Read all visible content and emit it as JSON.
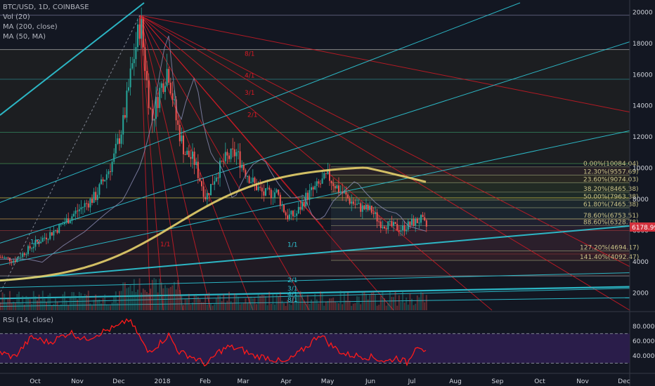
{
  "legend": {
    "symbol": "BTC/USD, 1D, COINBASE",
    "vol": "Vol (20)",
    "ma200": "MA (200, close)",
    "ma50": "MA (50, MA)"
  },
  "rsi": {
    "label": "RSI (14, close)"
  },
  "last_price": "6178.99",
  "colors": {
    "background": "#131722",
    "ma200": "#e6d06b",
    "ma50": "#8d8db5",
    "fan": "#d91a25",
    "trend": "#2ec7d6",
    "price_tag": "#d3313d",
    "rsi_line": "#ff1a1a",
    "rsi_band": "#2a1d4a"
  },
  "fib_levels": [
    {
      "text": "0.00%(10084.04)",
      "price": 10084
    },
    {
      "text": "12.30%(9557.69)",
      "price": 9558
    },
    {
      "text": "23.60%(9074.03)",
      "price": 9074
    },
    {
      "text": "38.20%(8465.38)",
      "price": 8465
    },
    {
      "text": "50.00%(7963.38)",
      "price": 7963
    },
    {
      "text": "61.80%(7465.38)",
      "price": 7465
    },
    {
      "text": "78.60%(6753.51)",
      "price": 6754
    },
    {
      "text": "88.60%(6328.78)",
      "price": 6329
    },
    {
      "text": "127.20%(4694.17)",
      "price": 4694
    },
    {
      "text": "141.40%(4092.47)",
      "price": 4092
    }
  ],
  "fan_labels": [
    "8/1",
    "4/1",
    "3/1",
    "2/1",
    "1/1"
  ],
  "speed_labels": [
    "1/2",
    "1/1",
    "2/1",
    "3/1",
    "4/1",
    "8/1"
  ],
  "chart_data": {
    "type": "candlestick",
    "x_ticks": [
      "Oct",
      "Nov",
      "Dec",
      "2018",
      "Feb",
      "Mar",
      "Apr",
      "May",
      "Jun",
      "Jul",
      "Aug",
      "Sep",
      "Oct",
      "Nov",
      "Dec"
    ],
    "y_ticks": [
      20000,
      18000,
      16000,
      14000,
      12000,
      10000,
      8000,
      6000,
      4000,
      2000
    ],
    "ylim": [
      900,
      20600
    ],
    "rsi_ticks": [
      "80.0000",
      "60.0000",
      "40.0000"
    ],
    "rsi_ylim": [
      20,
      95
    ],
    "rsi_bands": [
      30,
      70
    ],
    "closes_monthly": [
      {
        "month": "Oct",
        "close": 5500
      },
      {
        "month": "Nov",
        "close": 8200
      },
      {
        "month": "Dec",
        "close": 13800
      },
      {
        "month": "2018",
        "close": 14500
      },
      {
        "month": "Feb",
        "close": 10300
      },
      {
        "month": "Mar",
        "close": 6900
      },
      {
        "month": "Apr",
        "close": 9250
      },
      {
        "month": "May",
        "close": 7500
      },
      {
        "month": "Jun",
        "close": 6400
      },
      {
        "month": "Jul",
        "close": 6179
      }
    ],
    "peak": 19800,
    "last": 6178.99
  }
}
